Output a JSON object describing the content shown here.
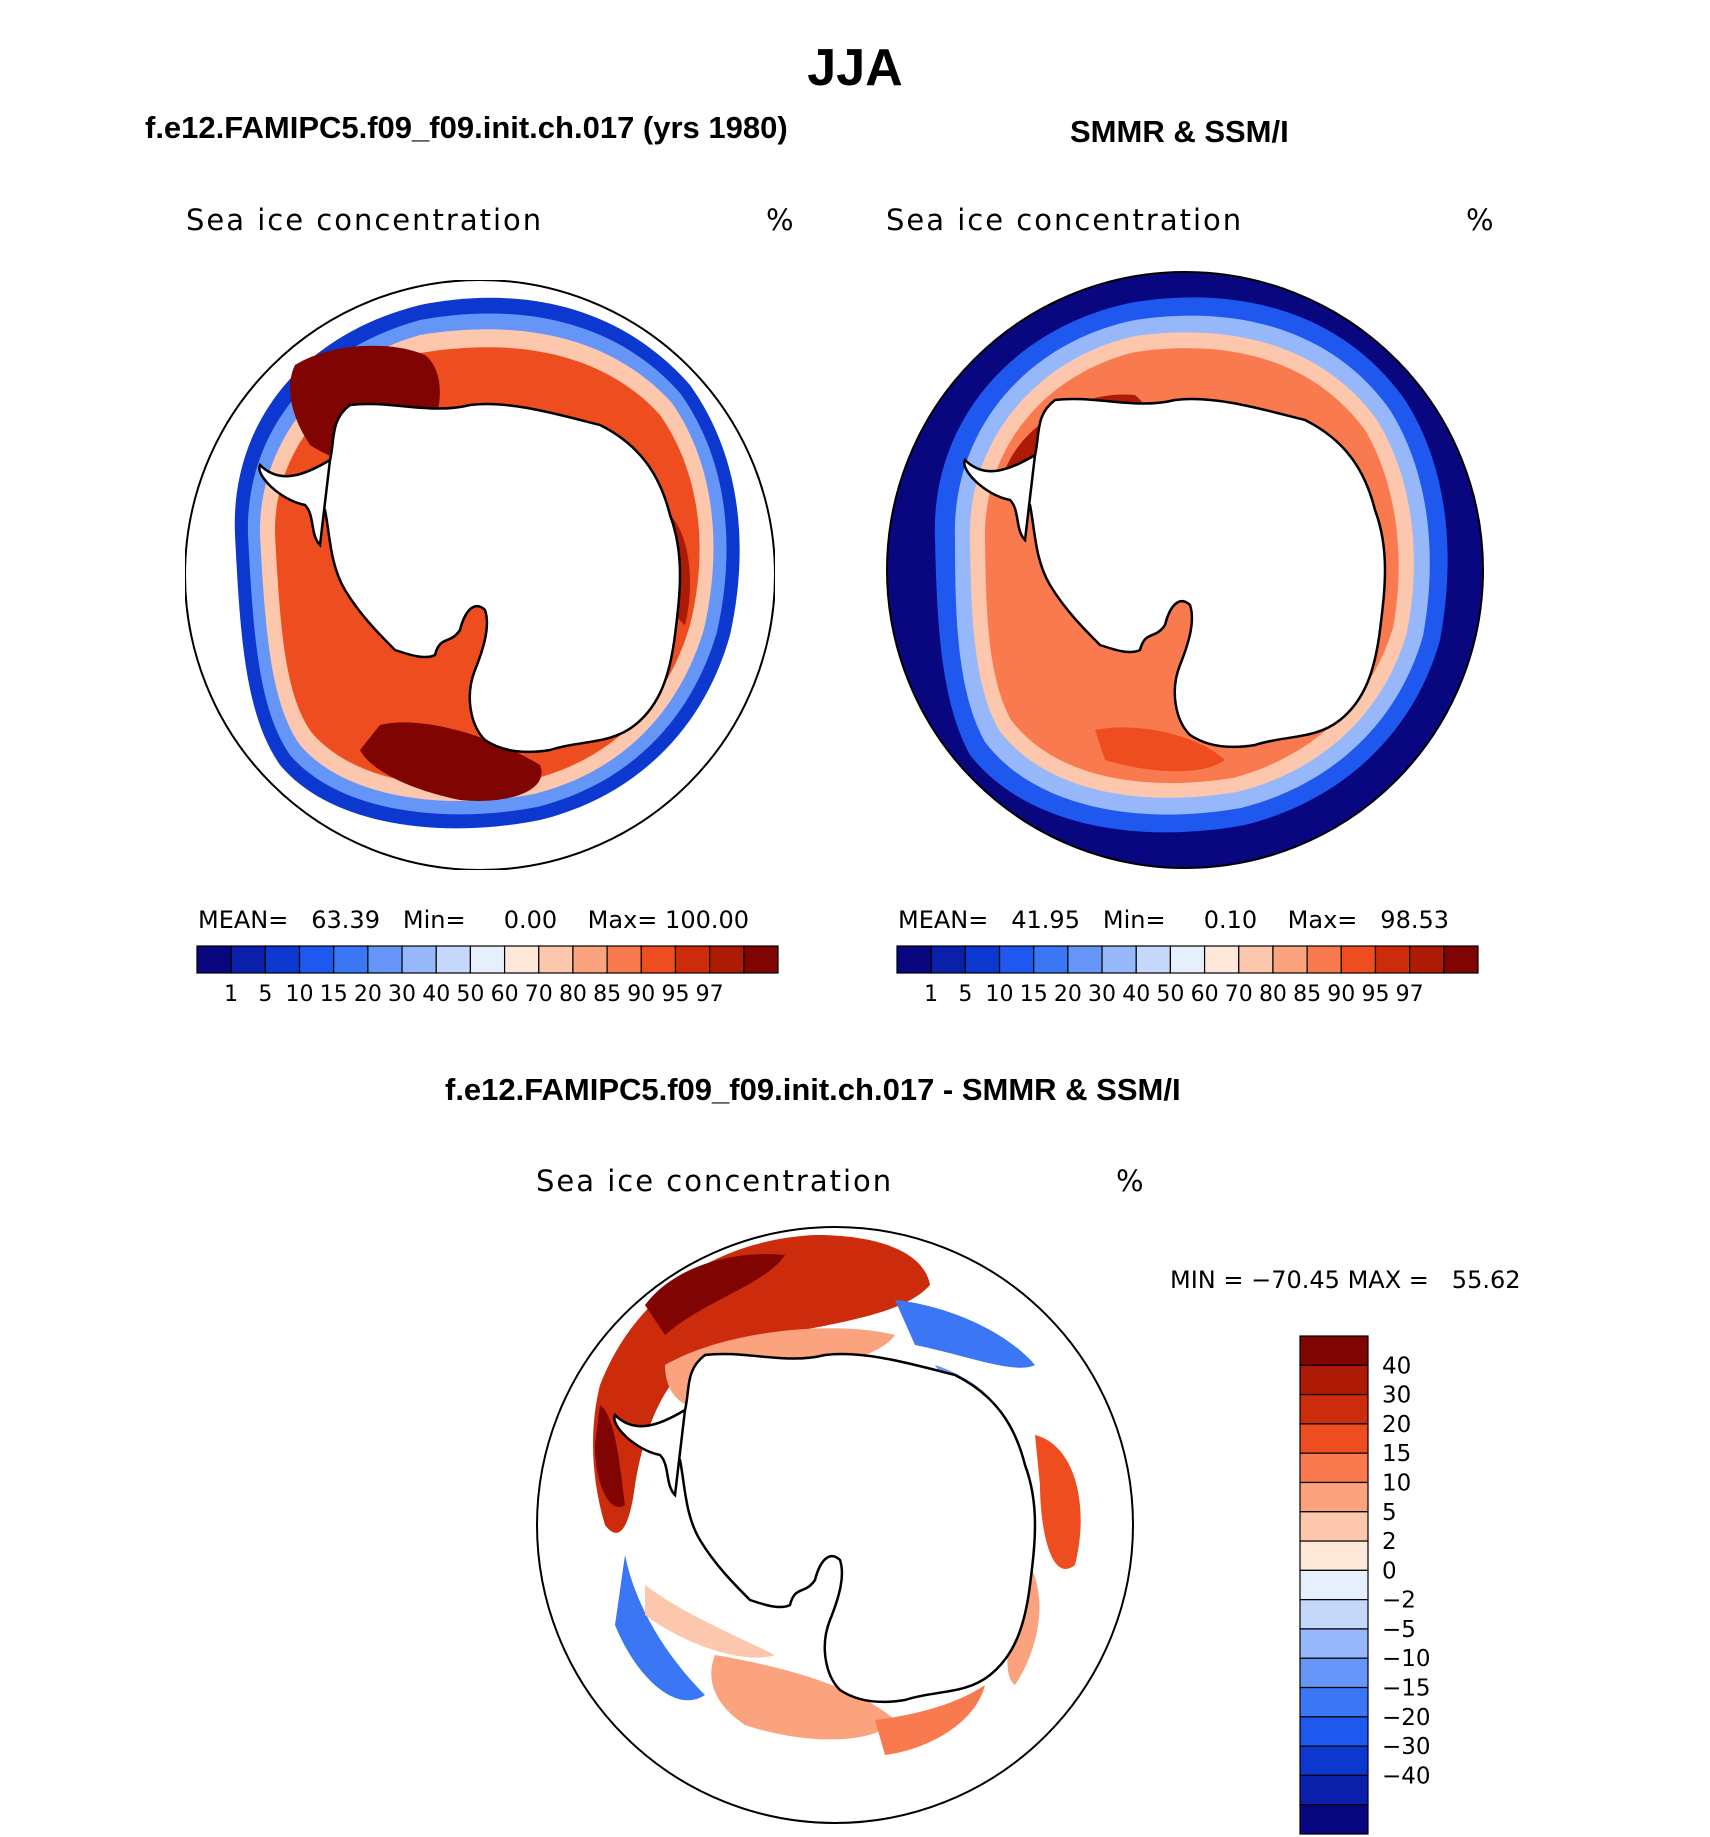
{
  "page": {
    "title": "JJA"
  },
  "panels": {
    "model": {
      "title": "f.e12.FAMIPC5.f09_f09.init.ch.017 (yrs 1980)",
      "label": "Sea ice concentration",
      "units": "%",
      "stats": {
        "mean_label": "MEAN=",
        "mean": "63.39",
        "min_label": "Min=",
        "min": "0.00",
        "max_label": "Max=",
        "max": "100.00"
      }
    },
    "obs": {
      "title": "SMMR & SSM/I",
      "label": "Sea ice concentration",
      "units": "%",
      "stats": {
        "mean_label": "MEAN=",
        "mean": "41.95",
        "min_label": "Min=",
        "min": "0.10",
        "max_label": "Max=",
        "max": "98.53"
      }
    },
    "diff": {
      "title": "f.e12.FAMIPC5.f09_f09.init.ch.017 - SMMR & SSM/I",
      "label": "Sea ice concentration",
      "units": "%",
      "stats": {
        "min_label": "MIN =",
        "min": "−70.45",
        "max_label": "MAX =",
        "max": "55.62"
      }
    }
  },
  "chart_data": [
    {
      "type": "heatmap",
      "title": "f.e12.FAMIPC5.f09_f09.init.ch.017 (yrs 1980)",
      "variable": "Sea ice concentration",
      "units": "%",
      "projection": "south polar stereographic",
      "region": "Antarctic",
      "stats": {
        "mean": 63.39,
        "min": 0.0,
        "max": 100.0
      },
      "colorbar": {
        "orientation": "horizontal",
        "levels": [
          "1",
          "5",
          "10",
          "15",
          "20",
          "30",
          "40",
          "50",
          "60",
          "70",
          "80",
          "85",
          "90",
          "95",
          "97"
        ],
        "colors": [
          "#08077f",
          "#0a1faa",
          "#0d38d0",
          "#1f58ef",
          "#3b76f5",
          "#6596f7",
          "#96b7f9",
          "#c5d7fb",
          "#e6f0fd",
          "#fde8da",
          "#fcc7ad",
          "#fba27f",
          "#f97a4e",
          "#ee4e1f",
          "#cd2c0c",
          "#ad1a06",
          "#7f0402"
        ]
      }
    },
    {
      "type": "heatmap",
      "title": "SMMR & SSM/I",
      "variable": "Sea ice concentration",
      "units": "%",
      "projection": "south polar stereographic",
      "region": "Antarctic",
      "stats": {
        "mean": 41.95,
        "min": 0.1,
        "max": 98.53
      },
      "colorbar": {
        "orientation": "horizontal",
        "levels": [
          "1",
          "5",
          "10",
          "15",
          "20",
          "30",
          "40",
          "50",
          "60",
          "70",
          "80",
          "85",
          "90",
          "95",
          "97"
        ],
        "colors": [
          "#08077f",
          "#0a1faa",
          "#0d38d0",
          "#1f58ef",
          "#3b76f5",
          "#6596f7",
          "#96b7f9",
          "#c5d7fb",
          "#e6f0fd",
          "#fde8da",
          "#fcc7ad",
          "#fba27f",
          "#f97a4e",
          "#ee4e1f",
          "#cd2c0c",
          "#ad1a06",
          "#7f0402"
        ]
      }
    },
    {
      "type": "heatmap",
      "title": "f.e12.FAMIPC5.f09_f09.init.ch.017 - SMMR & SSM/I",
      "variable": "Sea ice concentration",
      "units": "%",
      "projection": "south polar stereographic",
      "region": "Antarctic",
      "stats": {
        "min": -70.45,
        "max": 55.62
      },
      "colorbar": {
        "orientation": "vertical",
        "levels": [
          "40",
          "30",
          "20",
          "15",
          "10",
          "5",
          "2",
          "0",
          "−2",
          "−5",
          "−10",
          "−15",
          "−20",
          "−30",
          "−40"
        ],
        "colors": [
          "#7f0402",
          "#ad1a06",
          "#cd2c0c",
          "#ee4e1f",
          "#f97a4e",
          "#fba27f",
          "#fcc7ad",
          "#fde8da",
          "#e6f0fd",
          "#c5d7fb",
          "#96b7f9",
          "#6596f7",
          "#3b76f5",
          "#1f58ef",
          "#0d38d0",
          "#0a1faa",
          "#08077f"
        ]
      }
    }
  ]
}
